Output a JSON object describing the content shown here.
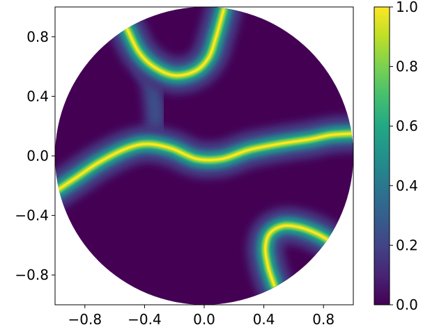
{
  "chart_data": {
    "type": "heatmap",
    "domain": "unit-disk",
    "title": "",
    "xlabel": "",
    "ylabel": "",
    "xlim": [
      -1.0,
      1.0
    ],
    "ylim": [
      -1.0,
      1.0
    ],
    "x_ticks": [
      -0.8,
      -0.4,
      0.0,
      0.4,
      0.8
    ],
    "y_ticks": [
      -0.8,
      -0.4,
      0.0,
      0.4,
      0.8
    ],
    "x_tick_labels": [
      "−0.8",
      "−0.4",
      "0.0",
      "0.4",
      "0.8"
    ],
    "y_tick_labels": [
      "−0.8",
      "−0.4",
      "0.0",
      "0.4",
      "0.8"
    ],
    "grid": false,
    "colormap": "viridis",
    "colorbar": {
      "range": [
        0.0,
        1.0
      ],
      "ticks": [
        0.0,
        0.2,
        0.4,
        0.6,
        0.8,
        1.0
      ],
      "tick_labels": [
        "0.0",
        "0.2",
        "0.4",
        "0.6",
        "0.8",
        "1.0"
      ],
      "stops": [
        "#440154",
        "#482475",
        "#414487",
        "#355f8d",
        "#2a788e",
        "#21918c",
        "#22a884",
        "#44bf70",
        "#7ad151",
        "#bddf26",
        "#fde725"
      ]
    },
    "bands": [
      {
        "id": "upper-arc",
        "peak_value": 1.0,
        "points": [
          [
            -0.52,
            0.86
          ],
          [
            -0.44,
            0.7
          ],
          [
            -0.34,
            0.6
          ],
          [
            -0.2,
            0.54
          ],
          [
            -0.06,
            0.57
          ],
          [
            0.03,
            0.66
          ],
          [
            0.08,
            0.8
          ],
          [
            0.13,
            0.98
          ]
        ]
      },
      {
        "id": "middle-band",
        "peak_value": 1.0,
        "points": [
          [
            -1.0,
            -0.24
          ],
          [
            -0.85,
            -0.14
          ],
          [
            -0.7,
            -0.04
          ],
          [
            -0.52,
            0.05
          ],
          [
            -0.38,
            0.08
          ],
          [
            -0.22,
            0.05
          ],
          [
            -0.05,
            -0.02
          ],
          [
            0.12,
            -0.02
          ],
          [
            0.3,
            0.04
          ],
          [
            0.5,
            0.08
          ],
          [
            0.7,
            0.11
          ],
          [
            0.85,
            0.14
          ],
          [
            1.0,
            0.15
          ]
        ]
      },
      {
        "id": "lower-right-arc",
        "peak_value": 1.0,
        "points": [
          [
            0.47,
            -0.87
          ],
          [
            0.43,
            -0.75
          ],
          [
            0.41,
            -0.62
          ],
          [
            0.44,
            -0.52
          ],
          [
            0.53,
            -0.47
          ],
          [
            0.64,
            -0.48
          ],
          [
            0.75,
            -0.52
          ],
          [
            0.84,
            -0.57
          ]
        ]
      }
    ],
    "bridge": {
      "points": [
        [
          -0.44,
          0.68
        ],
        [
          -0.36,
          0.5
        ],
        [
          -0.33,
          0.32
        ],
        [
          -0.33,
          0.12
        ]
      ],
      "peak_value": 0.25
    }
  }
}
